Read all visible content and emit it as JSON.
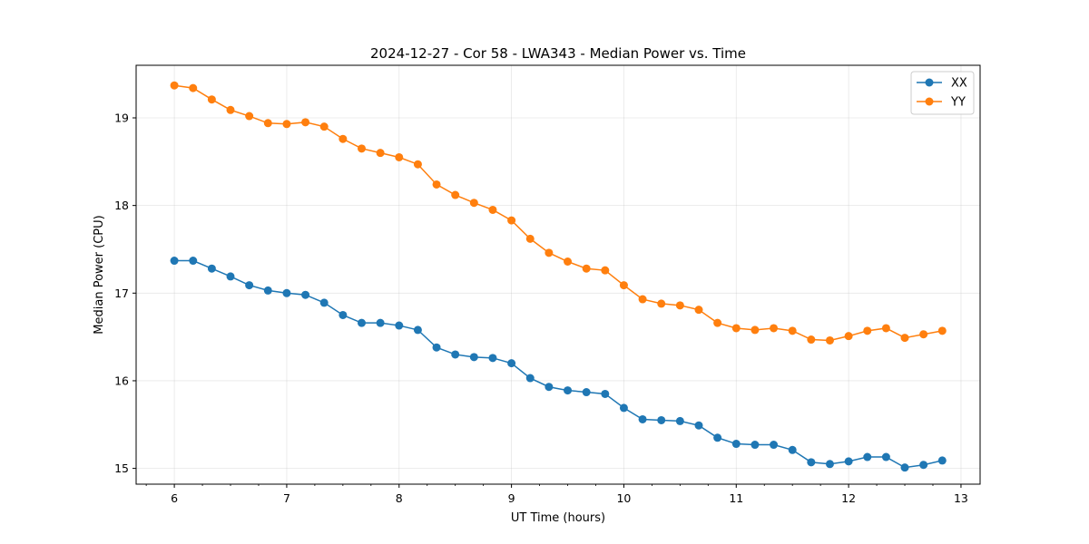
{
  "chart_data": {
    "type": "line",
    "title": "2024-12-27 - Cor 58 - LWA343 - Median Power vs. Time",
    "xlabel": "UT Time (hours)",
    "ylabel": "Median Power (CPU)",
    "xlim": [
      5.66,
      13.17
    ],
    "ylim": [
      14.82,
      19.6
    ],
    "xticks": [
      6,
      7,
      8,
      9,
      10,
      11,
      12,
      13
    ],
    "xtick_labels": [
      "6",
      "7",
      "8",
      "9",
      "10",
      "11",
      "12",
      "13"
    ],
    "yticks": [
      15,
      16,
      17,
      18,
      19
    ],
    "ytick_labels": [
      "15",
      "16",
      "17",
      "18",
      "19"
    ],
    "grid": true,
    "legend_position": "top-right",
    "x": [
      6.0,
      6.1667,
      6.3333,
      6.5,
      6.6667,
      6.8333,
      7.0,
      7.1667,
      7.3333,
      7.5,
      7.6667,
      7.8333,
      8.0,
      8.1667,
      8.3333,
      8.5,
      8.6667,
      8.8333,
      9.0,
      9.1667,
      9.3333,
      9.5,
      9.6667,
      9.8333,
      10.0,
      10.1667,
      10.3333,
      10.5,
      10.6667,
      10.8333,
      11.0,
      11.1667,
      11.3333,
      11.5,
      11.6667,
      11.8333,
      12.0,
      12.1667,
      12.3333,
      12.5,
      12.6667,
      12.8333
    ],
    "series": [
      {
        "name": "XX",
        "color": "#1f77b4",
        "values": [
          17.37,
          17.37,
          17.28,
          17.19,
          17.09,
          17.03,
          17.0,
          16.98,
          16.89,
          16.75,
          16.66,
          16.66,
          16.63,
          16.58,
          16.38,
          16.3,
          16.27,
          16.26,
          16.2,
          16.03,
          15.93,
          15.89,
          15.87,
          15.85,
          15.69,
          15.56,
          15.55,
          15.54,
          15.49,
          15.35,
          15.28,
          15.27,
          15.27,
          15.21,
          15.07,
          15.05,
          15.08,
          15.13,
          15.13,
          15.01,
          15.04,
          15.09
        ]
      },
      {
        "name": "YY",
        "color": "#ff7f0e",
        "values": [
          19.37,
          19.34,
          19.21,
          19.09,
          19.02,
          18.94,
          18.93,
          18.95,
          18.9,
          18.76,
          18.65,
          18.6,
          18.55,
          18.47,
          18.24,
          18.12,
          18.03,
          17.95,
          17.83,
          17.62,
          17.46,
          17.36,
          17.28,
          17.26,
          17.09,
          16.93,
          16.88,
          16.86,
          16.81,
          16.66,
          16.6,
          16.58,
          16.6,
          16.57,
          16.47,
          16.46,
          16.51,
          16.57,
          16.6,
          16.49,
          16.53,
          16.57
        ]
      }
    ]
  }
}
